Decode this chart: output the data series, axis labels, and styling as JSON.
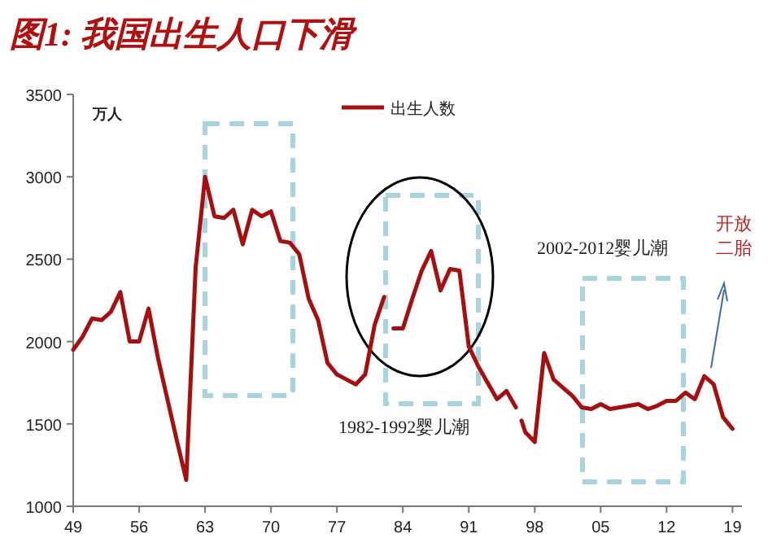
{
  "chart_data": {
    "type": "line",
    "title": "图1: 我国出生人口下滑",
    "ylabel": "万人",
    "x": [
      1949,
      1950,
      1951,
      1952,
      1953,
      1954,
      1955,
      1956,
      1957,
      1958,
      1959,
      1960,
      1961,
      1962,
      1963,
      1964,
      1965,
      1966,
      1967,
      1968,
      1969,
      1970,
      1971,
      1972,
      1973,
      1974,
      1975,
      1976,
      1977,
      1978,
      1979,
      1980,
      1981,
      1982,
      1982.5,
      1983,
      1984,
      1985,
      1986,
      1987,
      1988,
      1989,
      1990,
      1991,
      1992,
      1993,
      1994,
      1995,
      1996,
      1996.3,
      1996.6,
      1997,
      1998,
      1999,
      2000,
      2001,
      2002,
      2003,
      2004,
      2005,
      2006,
      2007,
      2008,
      2009,
      2010,
      2011,
      2012,
      2013,
      2014,
      2015,
      2016,
      2017,
      2018,
      2019
    ],
    "series": [
      {
        "name": "出生人数",
        "color": "#a50f0f",
        "values": [
          1950,
          2030,
          2140,
          2130,
          2180,
          2300,
          2000,
          2000,
          2200,
          1900,
          1650,
          1400,
          1160,
          2450,
          3000,
          2760,
          2750,
          2800,
          2590,
          2800,
          2760,
          2790,
          2610,
          2600,
          2530,
          2260,
          2130,
          1870,
          1800,
          1770,
          1740,
          1800,
          2100,
          2270,
          null,
          2080,
          2080,
          2260,
          2430,
          2550,
          2310,
          2440,
          2430,
          1970,
          1850,
          1750,
          1650,
          1700,
          1600,
          null,
          1520,
          1450,
          1390,
          1930,
          1770,
          1720,
          1670,
          1600,
          1590,
          1620,
          1590,
          1600,
          1610,
          1620,
          1590,
          1610,
          1640,
          1640,
          1690,
          1650,
          1790,
          1740,
          1540,
          1470
        ]
      }
    ],
    "xlim": [
      1949,
      2020
    ],
    "xticks": [
      {
        "value": 1949,
        "label": "49"
      },
      {
        "value": 1956,
        "label": "56"
      },
      {
        "value": 1963,
        "label": "63"
      },
      {
        "value": 1970,
        "label": "70"
      },
      {
        "value": 1977,
        "label": "77"
      },
      {
        "value": 1984,
        "label": "84"
      },
      {
        "value": 1991,
        "label": "91"
      },
      {
        "value": 1998,
        "label": "98"
      },
      {
        "value": 2005,
        "label": "05"
      },
      {
        "value": 2012,
        "label": "12"
      },
      {
        "value": 2019,
        "label": "19"
      }
    ],
    "ylim": [
      1000,
      3500
    ],
    "yticks": [
      1000,
      1500,
      2000,
      2500,
      3000,
      3500
    ],
    "legend": "top",
    "grid": false,
    "annotations": [
      "1982-1992婴儿潮",
      "2002-2012婴儿潮",
      "开放二胎"
    ]
  }
}
